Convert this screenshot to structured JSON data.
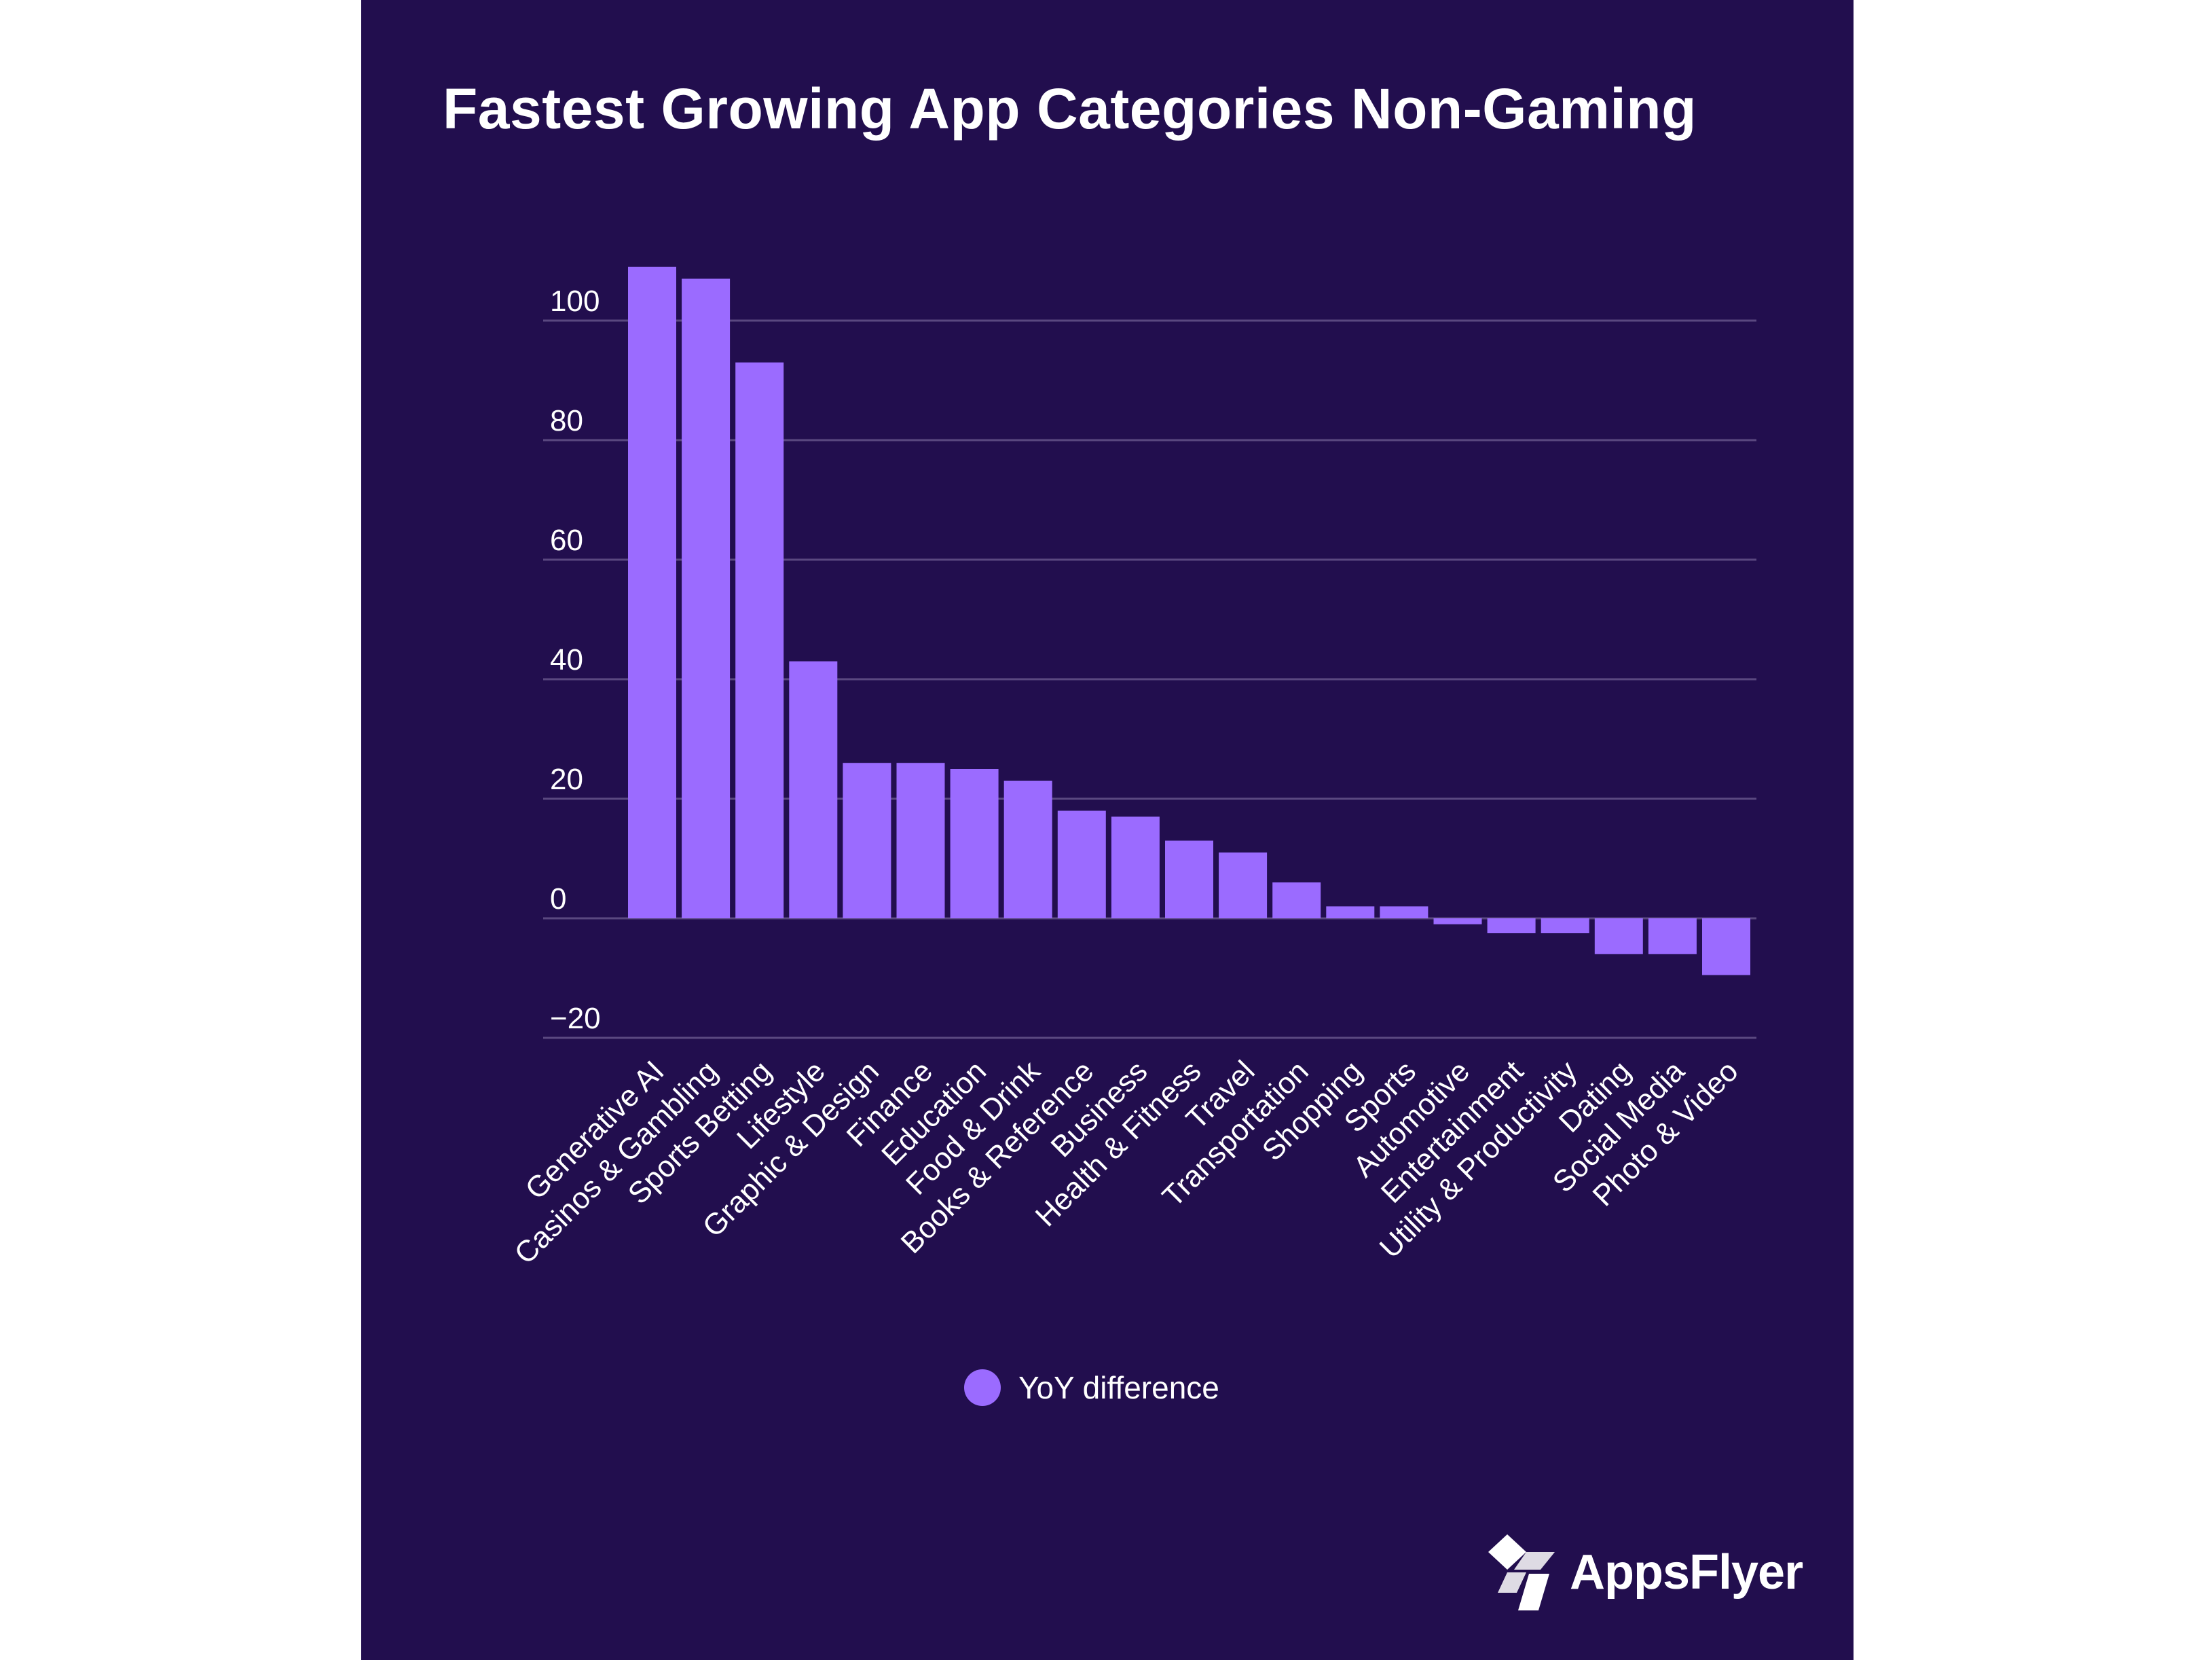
{
  "colors": {
    "background": "#220e4e",
    "bar": "#9b6bff",
    "grid": "#5a4880",
    "text": "#ffffff"
  },
  "chart_data": {
    "type": "bar",
    "title": "Fastest Growing App Categories Non-Gaming",
    "xlabel": "",
    "ylabel": "",
    "ylim": [
      -20,
      110
    ],
    "yticks": [
      100,
      80,
      60,
      40,
      20,
      0,
      -20
    ],
    "grid": true,
    "legend_position": "bottom-center",
    "categories": [
      "Generative AI",
      "Casinos & Gambling",
      "Sports Betting",
      "Lifestyle",
      "Graphic & Design",
      "Finance",
      "Education",
      "Food & Drink",
      "Books & Reference",
      "Business",
      "Health & Fitness",
      "Travel",
      "Transportation",
      "Shopping",
      "Sports",
      "Automotive",
      "Entertainment",
      "Utility & Productivity",
      "Dating",
      "Social Media",
      "Photo & Video"
    ],
    "series": [
      {
        "name": "YoY difference",
        "values": [
          109,
          107,
          93,
          43,
          26,
          26,
          25,
          23,
          18,
          17,
          13,
          11,
          6,
          2,
          2,
          -1,
          -2.5,
          -2.5,
          -6,
          -6,
          -9.5
        ]
      }
    ]
  },
  "legend": {
    "label": "YoY difference"
  },
  "brand": {
    "name": "AppsFlyer",
    "logo_icon": "appsflyer-logo-icon"
  }
}
